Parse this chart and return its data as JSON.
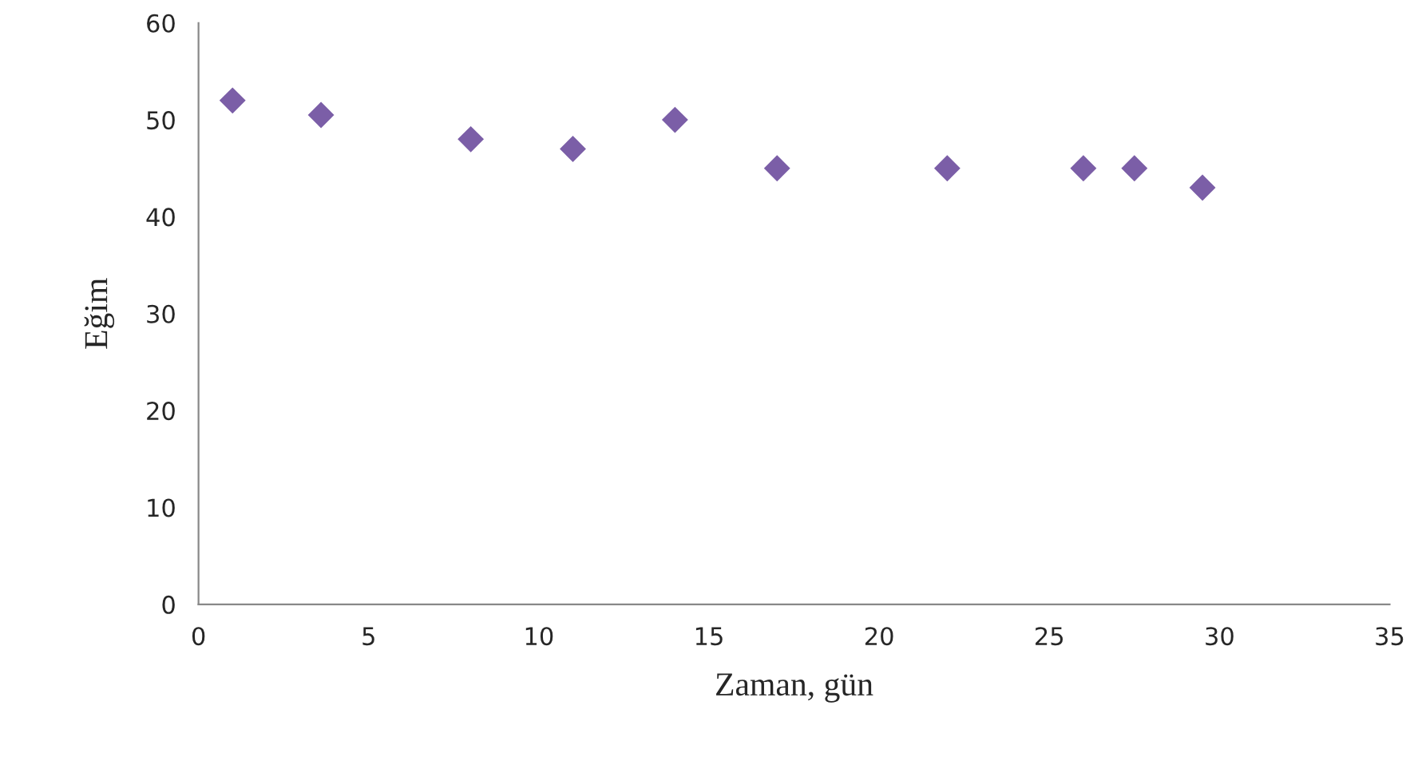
{
  "chart_data": {
    "type": "scatter",
    "xlabel": "Zaman, gün",
    "ylabel": "Eğim",
    "x": [
      1,
      3.6,
      8,
      11,
      14,
      17,
      22,
      26,
      27.5,
      29.5
    ],
    "values": [
      52,
      50.5,
      48,
      47,
      50,
      45,
      45,
      45,
      45,
      43
    ],
    "color": "#7b5ea7",
    "marker": "diamond",
    "xlim": [
      0,
      35
    ],
    "xticks": [
      0,
      5,
      10,
      15,
      20,
      25,
      30,
      35
    ],
    "ylim": [
      0,
      60
    ],
    "yticks": [
      0,
      10,
      20,
      30,
      40,
      50,
      60
    ],
    "grid": false
  }
}
